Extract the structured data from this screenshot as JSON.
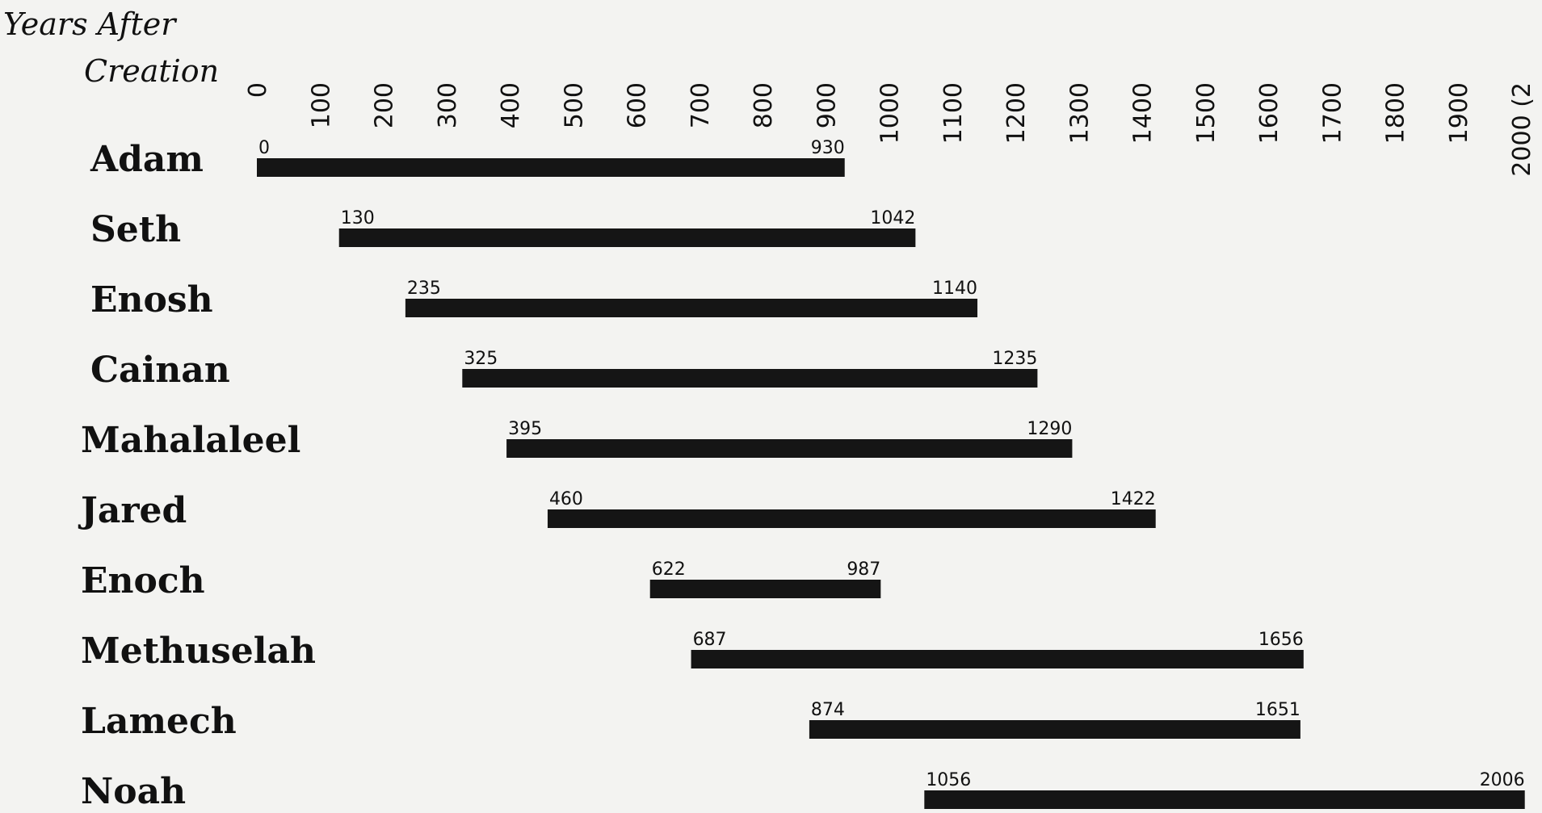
{
  "chart_data": {
    "type": "bar",
    "orientation": "horizontal-range",
    "title": "",
    "axis_title": [
      "Years After",
      "Creation"
    ],
    "xlim": [
      0,
      2000
    ],
    "ticks": [
      "0",
      "100",
      "200",
      "300",
      "400",
      "500",
      "600",
      "700",
      "800",
      "900",
      "1000",
      "1100",
      "1200",
      "1300",
      "1400",
      "1500",
      "1600",
      "1700",
      "1800",
      "1900",
      "2000 (2"
    ],
    "tick_values": [
      0,
      100,
      200,
      300,
      400,
      500,
      600,
      700,
      800,
      900,
      1000,
      1100,
      1200,
      1300,
      1400,
      1500,
      1600,
      1700,
      1800,
      1900,
      2000
    ],
    "grid": false,
    "colors": {
      "bar": "#151515",
      "background": "#f3f3f1"
    },
    "rows": [
      {
        "name": "Adam",
        "start": 0,
        "end": 930,
        "start_label": "0",
        "end_label": "930"
      },
      {
        "name": "Seth",
        "start": 130,
        "end": 1042,
        "start_label": "130",
        "end_label": "1042"
      },
      {
        "name": "Enosh",
        "start": 235,
        "end": 1140,
        "start_label": "235",
        "end_label": "1140"
      },
      {
        "name": "Cainan",
        "start": 325,
        "end": 1235,
        "start_label": "325",
        "end_label": "1235"
      },
      {
        "name": "Mahalaleel",
        "start": 395,
        "end": 1290,
        "start_label": "395",
        "end_label": "1290"
      },
      {
        "name": "Jared",
        "start": 460,
        "end": 1422,
        "start_label": "460",
        "end_label": "1422"
      },
      {
        "name": "Enoch",
        "start": 622,
        "end": 987,
        "start_label": "622",
        "end_label": "987"
      },
      {
        "name": "Methuselah",
        "start": 687,
        "end": 1656,
        "start_label": "687",
        "end_label": "1656"
      },
      {
        "name": "Lamech",
        "start": 874,
        "end": 1651,
        "start_label": "874",
        "end_label": "1651"
      },
      {
        "name": "Noah",
        "start": 1056,
        "end": 2006,
        "start_label": "1056",
        "end_label": "2006"
      }
    ]
  }
}
